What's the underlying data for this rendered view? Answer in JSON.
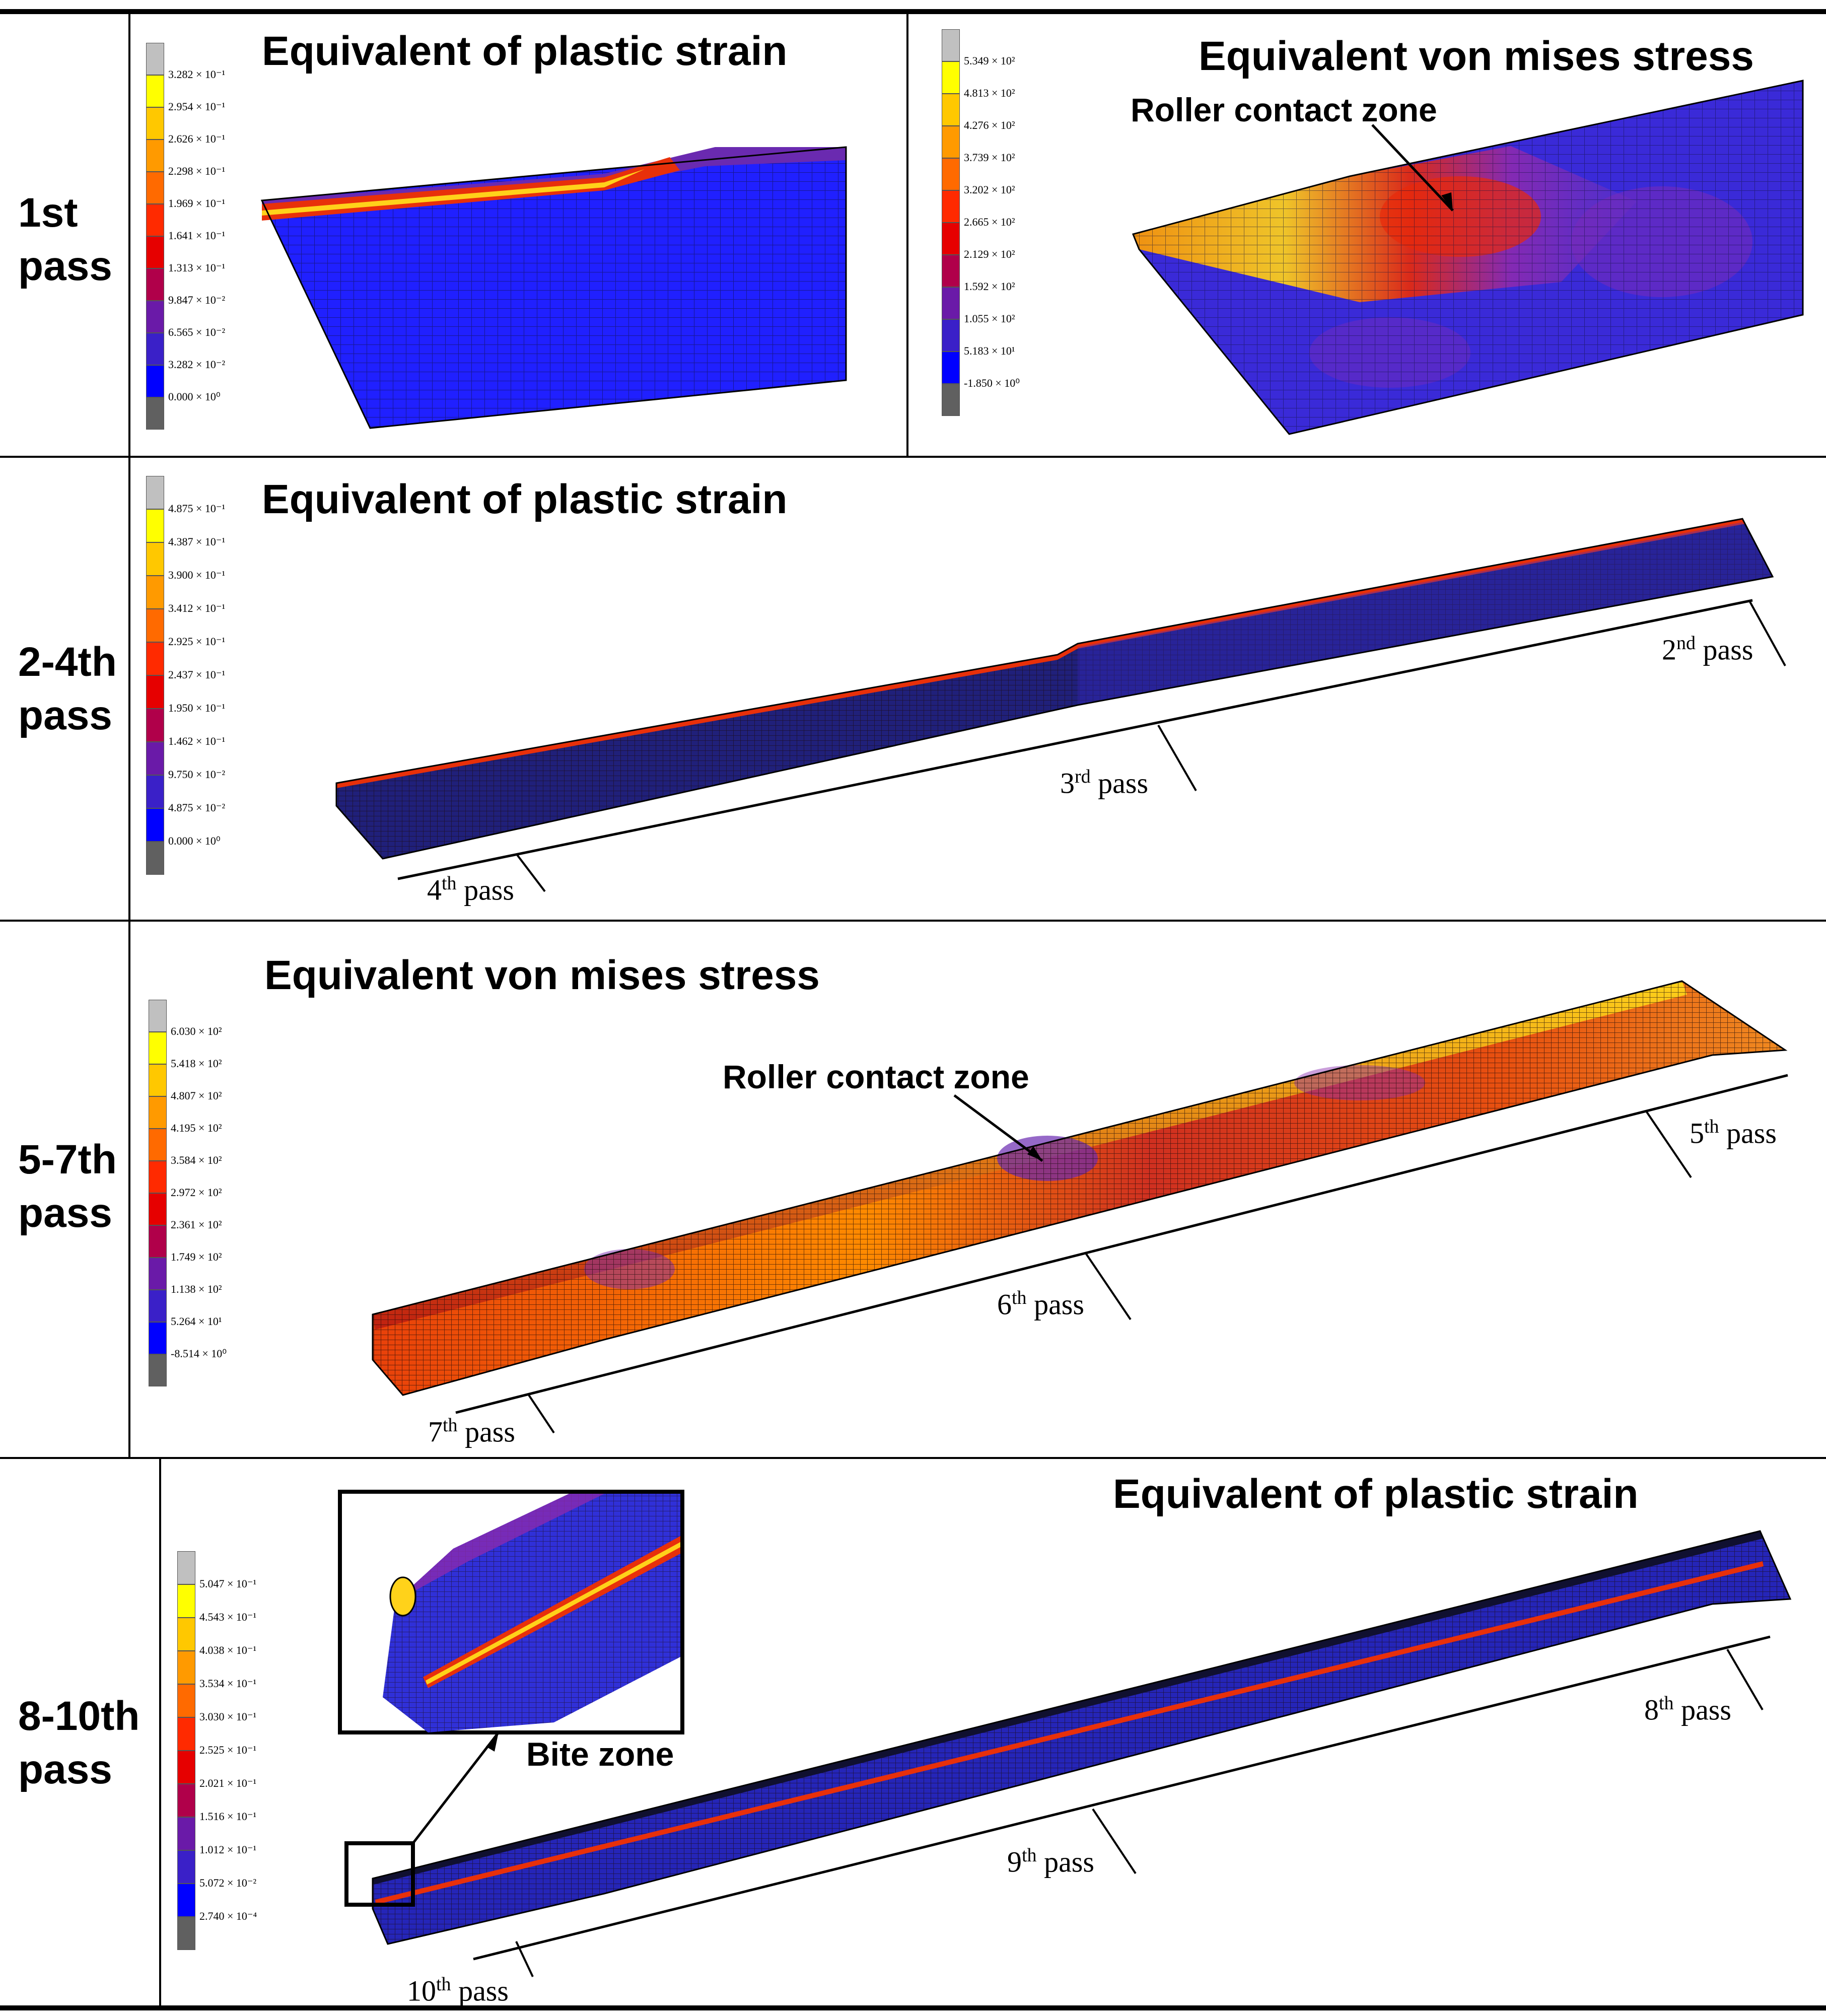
{
  "rows": [
    {
      "label": "1st\npass"
    },
    {
      "label": "2-4th\npass"
    },
    {
      "label": "5-7th\npass"
    },
    {
      "label": "8-10th\npass"
    }
  ],
  "panels": {
    "p1a": {
      "title": "Equivalent of plastic strain",
      "legend": [
        "3.282 × 10⁻¹",
        "2.954 × 10⁻¹",
        "2.626 × 10⁻¹",
        "2.298 × 10⁻¹",
        "1.969 × 10⁻¹",
        "1.641 × 10⁻¹",
        "1.313 × 10⁻¹",
        "9.847 × 10⁻²",
        "6.565 × 10⁻²",
        "3.282 × 10⁻²",
        "0.000 × 10⁰"
      ]
    },
    "p1b": {
      "title": "Equivalent von mises stress",
      "callout": "Roller contact zone",
      "legend": [
        "5.349 × 10²",
        "4.813 × 10²",
        "4.276 × 10²",
        "3.739 × 10²",
        "3.202 × 10²",
        "2.665 × 10²",
        "2.129 × 10²",
        "1.592 × 10²",
        "1.055 × 10²",
        "5.183 × 10¹",
        "-1.850 × 10⁰"
      ]
    },
    "p2": {
      "title": "Equivalent of plastic strain",
      "legend": [
        "4.875 × 10⁻¹",
        "4.387 × 10⁻¹",
        "3.900 × 10⁻¹",
        "3.412 × 10⁻¹",
        "2.925 × 10⁻¹",
        "2.437 × 10⁻¹",
        "1.950 × 10⁻¹",
        "1.462 × 10⁻¹",
        "9.750 × 10⁻²",
        "4.875 × 10⁻²",
        "0.000 × 10⁰"
      ],
      "passes": [
        {
          "n": "2",
          "sup": "nd",
          "word": " pass"
        },
        {
          "n": "3",
          "sup": "rd",
          "word": " pass"
        },
        {
          "n": "4",
          "sup": "th",
          "word": " pass"
        }
      ]
    },
    "p3": {
      "title": "Equivalent von mises stress",
      "callout": "Roller contact zone",
      "legend": [
        "6.030 × 10²",
        "5.418 × 10²",
        "4.807 × 10²",
        "4.195 × 10²",
        "3.584 × 10²",
        "2.972 × 10²",
        "2.361 × 10²",
        "1.749 × 10²",
        "1.138 × 10²",
        "5.264 × 10¹",
        "-8.514 × 10⁰"
      ],
      "passes": [
        {
          "n": "5",
          "sup": "th",
          "word": " pass"
        },
        {
          "n": "6",
          "sup": "th",
          "word": " pass"
        },
        {
          "n": "7",
          "sup": "th",
          "word": " pass"
        }
      ]
    },
    "p4": {
      "title": "Equivalent of plastic strain",
      "callout": "Bite zone",
      "legend": [
        "5.047 × 10⁻¹",
        "4.543 × 10⁻¹",
        "4.038 × 10⁻¹",
        "3.534 × 10⁻¹",
        "3.030 × 10⁻¹",
        "2.525 × 10⁻¹",
        "2.021 × 10⁻¹",
        "1.516 × 10⁻¹",
        "1.012 × 10⁻¹",
        "5.072 × 10⁻²",
        "2.740 × 10⁻⁴"
      ],
      "passes": [
        {
          "n": "8",
          "sup": "th",
          "word": " pass"
        },
        {
          "n": "9",
          "sup": "th",
          "word": " pass"
        },
        {
          "n": "10",
          "sup": "th",
          "word": " pass"
        }
      ]
    }
  },
  "colors": {
    "legend_scale": [
      "#c0c0c0",
      "#ffff00",
      "#ffc800",
      "#ff9a00",
      "#ff6a00",
      "#ff2a00",
      "#e60000",
      "#b0004a",
      "#6a1aa8",
      "#3a20c8",
      "#0000ff",
      "#606060"
    ],
    "mesh_blue": "#2030d8",
    "mesh_red": "#e8300a",
    "mesh_yellow": "#ffd21a"
  }
}
